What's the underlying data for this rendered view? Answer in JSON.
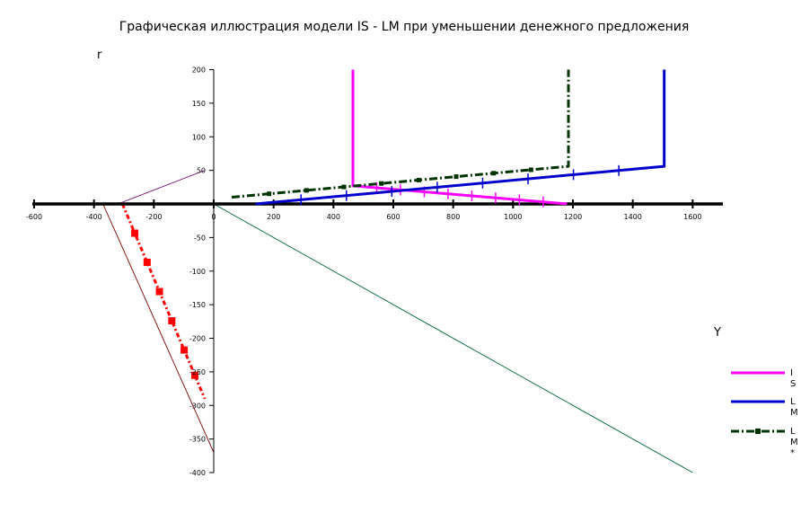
{
  "chart_data": {
    "type": "line",
    "title": "Графическая иллюстрация модели IS - LM при уменьшении денежного предложения",
    "xlabel": "Y",
    "ylabel": "r",
    "xlim": [
      -600,
      1700
    ],
    "ylim": [
      -400,
      200
    ],
    "x_ticks": [
      -600,
      -400,
      -200,
      0,
      200,
      400,
      600,
      800,
      1000,
      1200,
      1400,
      1600
    ],
    "y_ticks": [
      200,
      150,
      100,
      50,
      0,
      -50,
      -100,
      -150,
      -200,
      -250,
      -300,
      -350,
      -400
    ],
    "legend_position": "right",
    "series": [
      {
        "name": "IS",
        "color": "#ff00ff",
        "style": "solid",
        "x": [
          465,
          465,
          1180
        ],
        "y": [
          200,
          27,
          0
        ]
      },
      {
        "name": "LM",
        "color": "#0000cc",
        "style": "solid",
        "x": [
          140,
          1505,
          1505
        ],
        "y": [
          0,
          56,
          200
        ]
      },
      {
        "name": "LM*",
        "color": "#003300",
        "style": "dash-dot",
        "x": [
          60,
          1185,
          1185
        ],
        "y": [
          10,
          56,
          200
        ]
      }
    ],
    "aux_lines": [
      {
        "color": "#660066",
        "x": [
          -320,
          -30
        ],
        "y": [
          0,
          50
        ]
      },
      {
        "color": "#7a0000",
        "x": [
          -370,
          0
        ],
        "y": [
          0,
          -370
        ]
      },
      {
        "color": "#006633",
        "x": [
          0,
          1600
        ],
        "y": [
          0,
          -400
        ]
      }
    ],
    "aux_marked_line": {
      "color": "#ff0000",
      "x": [
        -305,
        -30
      ],
      "y": [
        0,
        -290
      ]
    }
  }
}
